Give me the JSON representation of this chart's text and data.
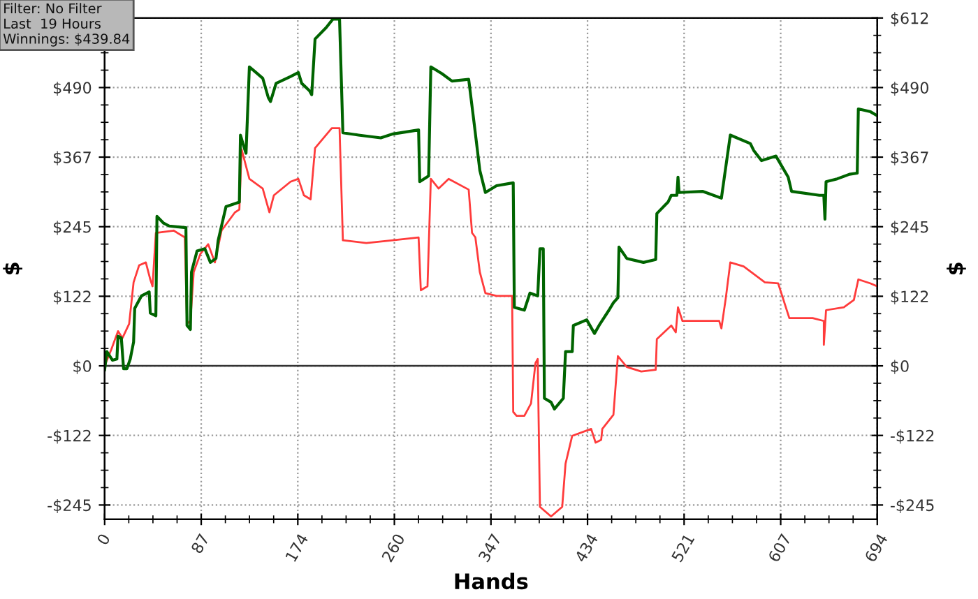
{
  "chart_data": {
    "type": "line",
    "xlabel": "Hands",
    "ylabel": "$",
    "y2label": "$",
    "annotations": [
      "Filter: No Filter",
      "Last  19 Hours",
      "Winnings: $439.84"
    ],
    "xlim": [
      0,
      694
    ],
    "xticks": [
      0,
      {
        "value": 86.75,
        "label": "87"
      },
      {
        "value": 173.5,
        "label": "174"
      },
      {
        "value": 260.25,
        "label": "260"
      },
      {
        "value": 347,
        "label": "347"
      },
      {
        "value": 433.75,
        "label": "434"
      },
      {
        "value": 520.5,
        "label": "521"
      },
      {
        "value": 607.25,
        "label": "607"
      },
      694
    ],
    "ylim": [
      -270,
      612
    ],
    "yticks": [
      {
        "value": -244.8,
        "label": "-$245"
      },
      {
        "value": -122.4,
        "label": "-$122"
      },
      {
        "value": 0,
        "label": "$0"
      },
      {
        "value": 122.4,
        "label": "$122"
      },
      {
        "value": 244.8,
        "label": "$245"
      },
      {
        "value": 367.2,
        "label": "$367"
      },
      {
        "value": 489.6,
        "label": "$490"
      },
      {
        "value": 612,
        "label": null
      }
    ],
    "y2lim": [
      -270,
      612
    ],
    "y2ticks": [
      {
        "value": -244.8,
        "label": "-$245"
      },
      {
        "value": -122.4,
        "label": "-$122"
      },
      {
        "value": 0,
        "label": "$0"
      },
      {
        "value": 122.4,
        "label": "$122"
      },
      {
        "value": 244.8,
        "label": "$245"
      },
      {
        "value": 367.2,
        "label": "$367"
      },
      {
        "value": 489.6,
        "label": "$490"
      },
      {
        "value": 612,
        "label": "$612"
      }
    ],
    "grid": true,
    "line_style": "solid",
    "marker": "none",
    "ref_lines": [
      {
        "axis": "y",
        "value": 0,
        "color": "#333333",
        "line_style": "solid"
      }
    ],
    "series": [
      {
        "color": "#ff3b3b",
        "x": [
          0,
          6,
          12,
          16,
          22,
          26,
          31,
          37,
          41,
          43,
          46,
          62,
          72,
          74,
          77,
          80,
          86,
          93,
          99,
          105,
          117,
          121,
          123,
          130,
          142,
          148,
          152,
          167,
          174,
          179,
          185,
          189,
          204,
          211,
          214,
          235,
          259,
          282,
          284,
          290,
          293,
          300,
          309,
          327,
          330,
          333,
          337,
          342,
          352,
          366,
          367,
          370,
          377,
          383,
          387,
          389,
          391,
          401,
          411,
          414,
          420,
          437,
          441,
          446,
          447,
          457,
          461,
          469,
          482,
          495,
          496,
          509,
          513,
          515,
          519,
          552,
          554,
          558,
          562,
          574,
          593,
          605,
          615,
          636,
          646,
          646,
          648,
          664,
          673,
          677,
          688,
          694
        ],
        "values": [
          0,
          29,
          61,
          49,
          74,
          147,
          177,
          182,
          152,
          140,
          234,
          238,
          226,
          74,
          79,
          165,
          197,
          214,
          182,
          238,
          270,
          275,
          381,
          329,
          312,
          270,
          300,
          324,
          329,
          300,
          293,
          383,
          418,
          418,
          221,
          216,
          221,
          226,
          133,
          140,
          329,
          312,
          329,
          310,
          234,
          226,
          165,
          128,
          123,
          123,
          -81,
          -88,
          -88,
          -66,
          5,
          12,
          -248,
          -265,
          -248,
          -172,
          -123,
          -111,
          -135,
          -130,
          -111,
          -86,
          17,
          -2,
          -10,
          -7,
          47,
          71,
          59,
          103,
          79,
          79,
          66,
          120,
          182,
          175,
          147,
          145,
          84,
          84,
          79,
          37,
          98,
          103,
          116,
          152,
          145,
          140
        ]
      },
      {
        "color": "#006400",
        "x": [
          0,
          2,
          7,
          11,
          12,
          15,
          17,
          20,
          23,
          26,
          27,
          33,
          40,
          41,
          46,
          47,
          53,
          58,
          73,
          74,
          77,
          78,
          83,
          90,
          95,
          100,
          102,
          109,
          121,
          122,
          125,
          127,
          130,
          136,
          142,
          147,
          149,
          154,
          167,
          174,
          177,
          184,
          186,
          189,
          199,
          205,
          211,
          214,
          228,
          248,
          259,
          282,
          283,
          291,
          293,
          303,
          312,
          327,
          332,
          337,
          342,
          352,
          367,
          368,
          377,
          382,
          389,
          391,
          394,
          395,
          401,
          404,
          412,
          414,
          420,
          421,
          433,
          440,
          445,
          453,
          457,
          461,
          462,
          469,
          484,
          495,
          496,
          506,
          509,
          514,
          515,
          516,
          537,
          554,
          557,
          562,
          580,
          583,
          590,
          603,
          614,
          617,
          642,
          646,
          647,
          648,
          658,
          669,
          676,
          677,
          688,
          694
        ],
        "values": [
          -7,
          25,
          10,
          12,
          52,
          49,
          -5,
          -5,
          12,
          42,
          101,
          123,
          130,
          93,
          88,
          263,
          251,
          246,
          243,
          71,
          64,
          165,
          202,
          206,
          182,
          189,
          221,
          280,
          288,
          406,
          386,
          374,
          526,
          516,
          506,
          472,
          465,
          497,
          509,
          516,
          497,
          484,
          477,
          575,
          595,
          610,
          610,
          410,
          406,
          401,
          408,
          415,
          324,
          334,
          526,
          514,
          501,
          504,
          425,
          344,
          305,
          317,
          322,
          103,
          98,
          128,
          123,
          206,
          206,
          -57,
          -64,
          -76,
          -57,
          25,
          25,
          71,
          81,
          57,
          74,
          98,
          111,
          120,
          209,
          189,
          182,
          187,
          268,
          288,
          300,
          300,
          332,
          305,
          307,
          295,
          337,
          406,
          391,
          379,
          361,
          369,
          332,
          307,
          300,
          300,
          258,
          324,
          329,
          337,
          339,
          452,
          447,
          440
        ]
      }
    ]
  }
}
